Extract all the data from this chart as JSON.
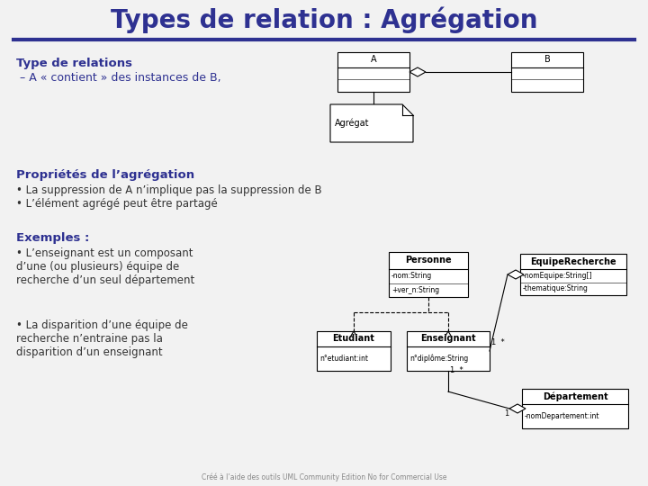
{
  "title": "Types de relation : Agrégation",
  "title_color": "#2E3191",
  "title_fontsize": 20,
  "bg_color": "#F2F2F2",
  "separator_color": "#2E3191",
  "text_color": "#2E3191",
  "body_text_color": "#333333",
  "section1_bold": "Type de relations",
  "section1_text": " – A « contient » des instances de B,",
  "section2_bold": "Propriétés de l’agrégation",
  "bullet1": "• La suppression de A n’implique pas la suppression de B",
  "bullet2": "• L’élément agrégé peut être partagé",
  "section3_bold": "Exemples :",
  "ex_bullet1_line1": "• L’enseignant est un composant",
  "ex_bullet1_line2": "d’une (ou plusieurs) équipe de",
  "ex_bullet1_line3": "recherche d’un seul département",
  "ex_bullet2_line1": "• La disparition d’une équipe de",
  "ex_bullet2_line2": "recherche n’entraine pas la",
  "ex_bullet2_line3": "disparition d’un enseignant",
  "footer": "Créé à l’aide des outils UML Community Edition No for Commercial Use"
}
